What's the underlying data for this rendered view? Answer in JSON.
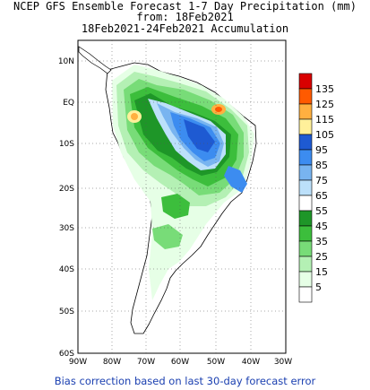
{
  "title": {
    "line1": "NCEP GFS Ensemble Forecast 1-7 Day Precipitation (mm)",
    "line2": "from: 18Feb2021",
    "line3": "18Feb2021-24Feb2021 Accumulation"
  },
  "axes": {
    "lat_labels": [
      "10N",
      "EQ",
      "10S",
      "20S",
      "30S",
      "40S",
      "50S",
      "60S"
    ],
    "lon_labels": [
      "90W",
      "80W",
      "70W",
      "60W",
      "50W",
      "40W",
      "30W"
    ]
  },
  "legend": {
    "labels": [
      "135",
      "125",
      "115",
      "105",
      "95",
      "85",
      "75",
      "65",
      "55",
      "45",
      "35",
      "25",
      "15",
      "5"
    ],
    "colors": [
      "#d90000",
      "#ff5a00",
      "#ffb040",
      "#fff09a",
      "#1e5ad2",
      "#3c8cf0",
      "#78b4f0",
      "#bce0fa",
      "#ffffff",
      "#1e9628",
      "#3cbe3c",
      "#78dc78",
      "#b4f0b4",
      "#e6ffe6"
    ]
  },
  "footer": "Bias correction based on last 30-day forecast error"
}
